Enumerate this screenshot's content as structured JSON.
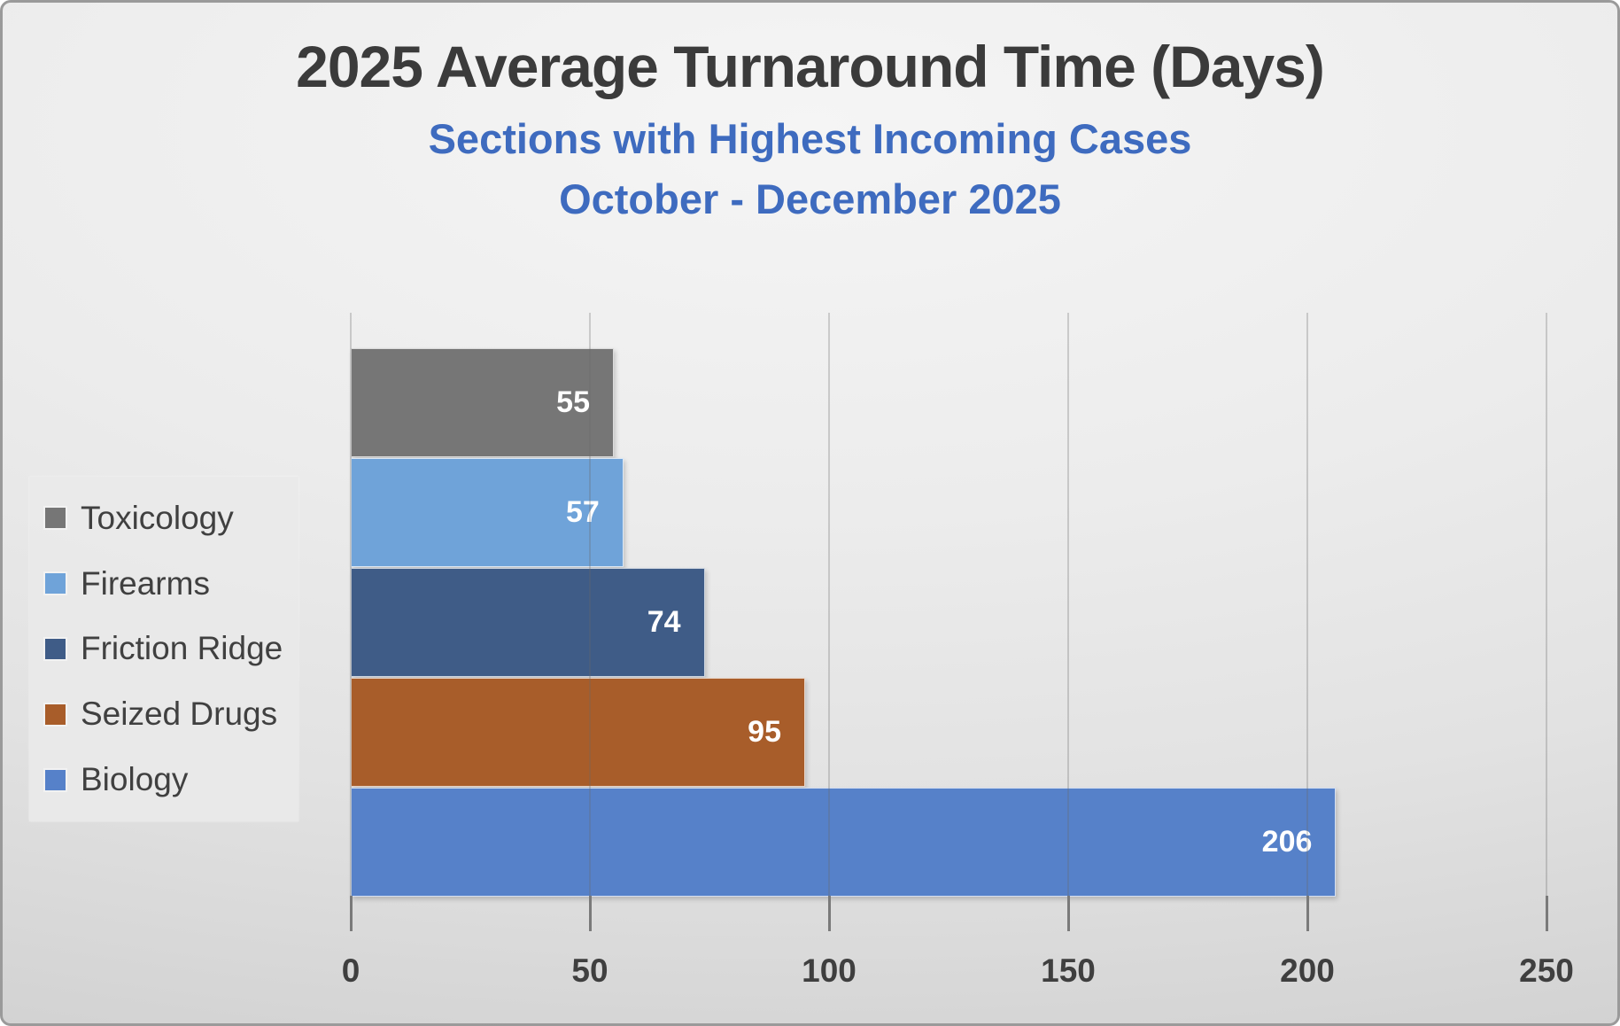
{
  "chart_data": {
    "type": "bar",
    "orientation": "horizontal",
    "title": "2025 Average Turnaround Time (Days)",
    "subtitle": [
      "Sections with Highest Incoming Cases",
      "October - December 2025"
    ],
    "series": [
      {
        "name": "Toxicology",
        "value": 55,
        "color": "#767676"
      },
      {
        "name": "Firearms",
        "value": 57,
        "color": "#6fa3d9"
      },
      {
        "name": "Friction Ridge",
        "value": 74,
        "color": "#3f5c87"
      },
      {
        "name": "Seized Drugs",
        "value": 95,
        "color": "#a85d2a"
      },
      {
        "name": "Biology",
        "value": 206,
        "color": "#5681c9"
      }
    ],
    "xlim": [
      0,
      250
    ],
    "x_ticks": [
      0,
      50,
      100,
      150,
      200,
      250
    ],
    "grid": true,
    "legend_position": "middle-left",
    "value_labels": "inside-end",
    "bar_order_top_to_bottom": [
      "Toxicology",
      "Firearms",
      "Friction Ridge",
      "Seized Drugs",
      "Biology"
    ]
  },
  "colors": {
    "title_text": "#3b3b3b",
    "subtitle_text": "#3e6bbf",
    "axis_tick_text": "#3f3f3f",
    "value_label_text": "#ffffff",
    "background": "#e8e8e8"
  }
}
